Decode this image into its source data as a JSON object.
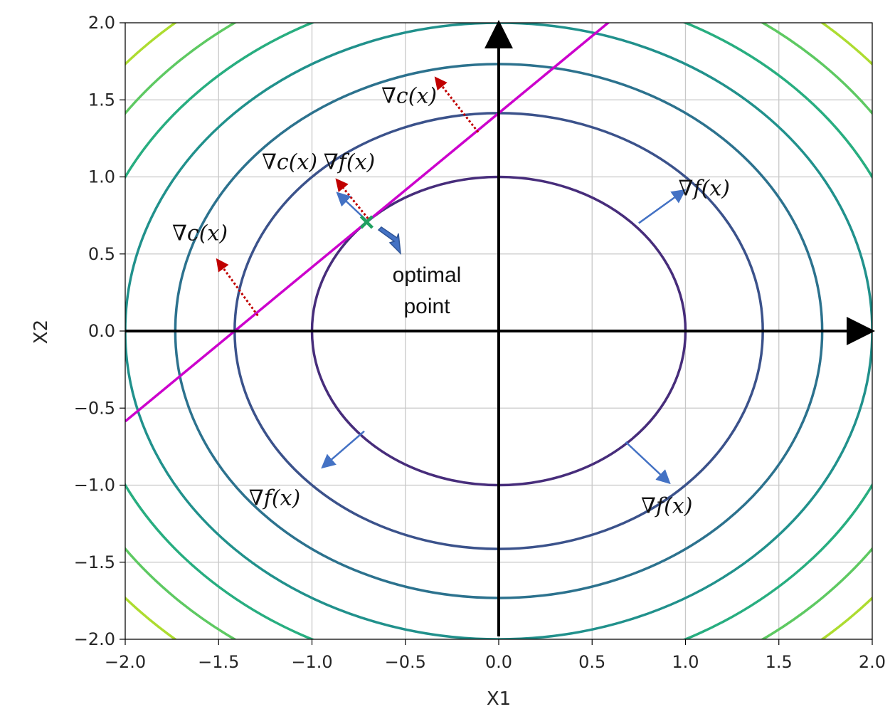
{
  "chart_data": {
    "type": "contour",
    "title": "",
    "xlabel": "X1",
    "ylabel": "X2",
    "xlim": [
      -2.0,
      2.0
    ],
    "ylim": [
      -2.0,
      2.0
    ],
    "grid": true,
    "xticks": [
      "−2.0",
      "−1.5",
      "−1.0",
      "−0.5",
      "0.0",
      "0.5",
      "1.0",
      "1.5",
      "2.0"
    ],
    "yticks": [
      "2.0",
      "1.5",
      "1.0",
      "0.5",
      "0.0",
      "−0.5",
      "−1.0",
      "−1.5",
      "−2.0"
    ],
    "contour_levels": [
      {
        "radius": 1.0,
        "color": "#472d7b"
      },
      {
        "radius": 1.414,
        "color": "#3b528b"
      },
      {
        "radius": 1.732,
        "color": "#2c728e"
      },
      {
        "radius": 2.0,
        "color": "#21918c"
      },
      {
        "radius": 2.236,
        "color": "#28ae80"
      },
      {
        "radius": 2.449,
        "color": "#5ec962"
      },
      {
        "radius": 2.646,
        "color": "#addc30"
      }
    ],
    "constraint_line": {
      "slope": 1,
      "intercept": 1.414,
      "color": "#cc00cc"
    },
    "optimal_point": {
      "x": -0.707,
      "y": 0.707,
      "color": "#20a060"
    },
    "gradient_f_label": "∇f(x)",
    "gradient_c_label": "∇c(x)",
    "gradient_f_arrows": [
      {
        "x1": 0.75,
        "y1": 0.7,
        "x2": 0.98,
        "y2": 0.9
      },
      {
        "x1": -0.72,
        "y1": -0.65,
        "x2": -0.93,
        "y2": -0.87
      },
      {
        "x1": 0.68,
        "y1": -0.72,
        "x2": 0.9,
        "y2": -0.97
      },
      {
        "x1": -0.71,
        "y1": 0.72,
        "x2": -0.85,
        "y2": 0.88
      }
    ],
    "gradient_c_arrows": [
      {
        "x1": -0.11,
        "y1": 1.29,
        "x2": -0.33,
        "y2": 1.63
      },
      {
        "x1": -0.7,
        "y1": 0.73,
        "x2": -0.86,
        "y2": 0.97
      },
      {
        "x1": -1.29,
        "y1": 0.1,
        "x2": -1.5,
        "y2": 0.45
      }
    ],
    "grad_f_labels": [
      {
        "x": 1.1,
        "y": 0.88
      },
      {
        "x": -0.8,
        "y": 1.05
      },
      {
        "x": -1.2,
        "y": -1.13
      },
      {
        "x": 0.9,
        "y": -1.18
      }
    ],
    "grad_c_labels": [
      {
        "x": -0.48,
        "y": 1.48
      },
      {
        "x": -1.12,
        "y": 1.05
      },
      {
        "x": -1.6,
        "y": 0.59
      }
    ],
    "annotation": {
      "line1": "optimal",
      "line2": "point"
    }
  }
}
